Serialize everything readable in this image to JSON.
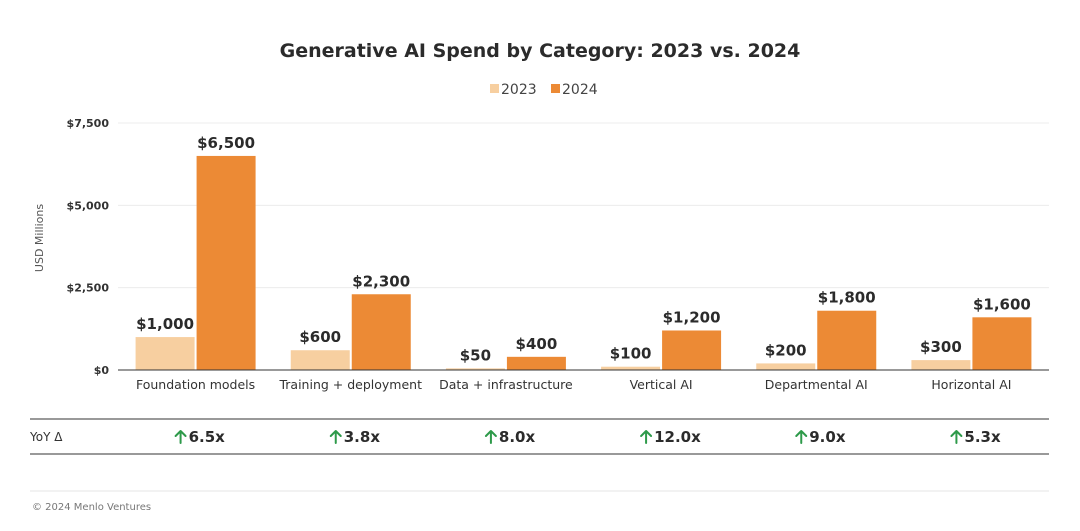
{
  "chart_data": {
    "type": "bar",
    "title": "Generative AI Spend by Category: 2023 vs. 2024",
    "ylabel": "USD Millions",
    "xlabel": "",
    "ylim": [
      0,
      7500
    ],
    "yticks": [
      "$0",
      "$2,500",
      "$5,000",
      "$7,500"
    ],
    "ytick_values": [
      0,
      2500,
      5000,
      7500
    ],
    "legend_position": "top-center",
    "grid": true,
    "categories": [
      "Foundation models",
      "Training + deployment",
      "Data + infrastructure",
      "Vertical AI",
      "Departmental AI",
      "Horizontal AI"
    ],
    "series": [
      {
        "name": "2023",
        "color": "#f7cfa0",
        "values": [
          1000,
          600,
          50,
          100,
          200,
          300
        ],
        "labels": [
          "$1,000",
          "$600",
          "$50",
          "$100",
          "$200",
          "$300"
        ]
      },
      {
        "name": "2024",
        "color": "#ec8a35",
        "values": [
          6500,
          2300,
          400,
          1200,
          1800,
          1600
        ],
        "labels": [
          "$6,500",
          "$2,300",
          "$400",
          "$1,200",
          "$1,800",
          "$1,600"
        ]
      }
    ]
  },
  "yoy": {
    "label": "YoY Δ",
    "arrow_color": "#2e9a4a",
    "values": [
      "6.5x",
      "3.8x",
      "8.0x",
      "12.0x",
      "9.0x",
      "5.3x"
    ]
  },
  "footer": "© 2024 Menlo Ventures"
}
